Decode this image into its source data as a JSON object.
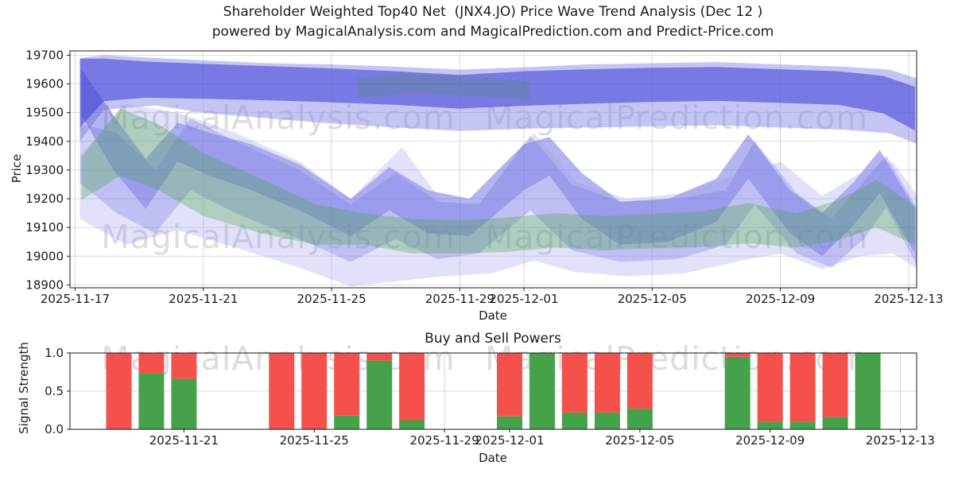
{
  "title": {
    "line1": "Shareholder Weighted Top40 Net  (JNX4.JO) Price Wave Trend Analysis (Dec 12 )",
    "line2": "powered by MagicalAnalysis.com and MagicalPrediction.com and Predict-Price.com"
  },
  "watermarks": {
    "left": "MagicalAnalysis.com",
    "right": "MagicalPrediction.com"
  },
  "colors": {
    "bar_red": "#f4514d",
    "bar_green": "#46a14b",
    "grid": "#d9d9d9",
    "spine": "#1a1a1a",
    "tick_text": "#1a1a1a"
  },
  "chart_data": [
    {
      "type": "area",
      "name": "price-wave-trend",
      "xlabel": "Date",
      "ylabel": "Price",
      "x_epoch": "2025-11-17",
      "xlim_days": [
        -0.16,
        26.25
      ],
      "ylim": [
        18890,
        19715
      ],
      "grid": true,
      "xticks": [
        {
          "d": 0,
          "label": "2025-11-17"
        },
        {
          "d": 4,
          "label": "2025-11-21"
        },
        {
          "d": 8,
          "label": "2025-11-25"
        },
        {
          "d": 12,
          "label": "2025-11-29"
        },
        {
          "d": 14,
          "label": "2025-12-01"
        },
        {
          "d": 18,
          "label": "2025-12-05"
        },
        {
          "d": 22,
          "label": "2025-12-09"
        },
        {
          "d": 26,
          "label": "2025-12-13"
        }
      ],
      "yticks": [
        {
          "v": 18900,
          "label": "18900"
        },
        {
          "v": 19000,
          "label": "19000"
        },
        {
          "v": 19100,
          "label": "19100"
        },
        {
          "v": 19200,
          "label": "19200"
        },
        {
          "v": 19300,
          "label": "19300"
        },
        {
          "v": 19400,
          "label": "19400"
        },
        {
          "v": 19500,
          "label": "19500"
        },
        {
          "v": 19600,
          "label": "19600"
        },
        {
          "v": 19700,
          "label": "19700"
        }
      ],
      "bands": [
        {
          "name": "outer-light-upper",
          "color": "#8c8cea",
          "opacity": 0.5,
          "points": [
            [
              0.15,
              19400,
              19690
            ],
            [
              0.9,
              19510,
              19700
            ],
            [
              2.5,
              19525,
              19690
            ],
            [
              4,
              19500,
              19682
            ],
            [
              6,
              19480,
              19672
            ],
            [
              8,
              19462,
              19668
            ],
            [
              10,
              19448,
              19660
            ],
            [
              12,
              19436,
              19650
            ],
            [
              14,
              19444,
              19658
            ],
            [
              16,
              19448,
              19668
            ],
            [
              18,
              19452,
              19672
            ],
            [
              20,
              19456,
              19676
            ],
            [
              22,
              19448,
              19668
            ],
            [
              24,
              19440,
              19660
            ],
            [
              25.4,
              19428,
              19650
            ],
            [
              26.3,
              19390,
              19618
            ]
          ]
        },
        {
          "name": "upper-dark",
          "color": "#2e2ed2",
          "opacity": 0.5,
          "points": [
            [
              0.15,
              19448,
              19688
            ],
            [
              0.9,
              19540,
              19688
            ],
            [
              2.2,
              19552,
              19678
            ],
            [
              4,
              19548,
              19670
            ],
            [
              6,
              19543,
              19662
            ],
            [
              8,
              19536,
              19654
            ],
            [
              10,
              19527,
              19644
            ],
            [
              12,
              19514,
              19631
            ],
            [
              14,
              19524,
              19644
            ],
            [
              16,
              19531,
              19651
            ],
            [
              18,
              19537,
              19656
            ],
            [
              20,
              19541,
              19659
            ],
            [
              22,
              19534,
              19651
            ],
            [
              23.8,
              19527,
              19644
            ],
            [
              25.2,
              19498,
              19628
            ],
            [
              26.2,
              19438,
              19590
            ]
          ]
        },
        {
          "name": "mid-main",
          "color": "#4343d8",
          "opacity": 0.4,
          "points": [
            [
              0.2,
              19490,
              19650
            ],
            [
              1.2,
              19300,
              19490
            ],
            [
              2.2,
              19165,
              19340
            ],
            [
              3.2,
              19330,
              19465
            ],
            [
              4.2,
              19280,
              19430
            ],
            [
              5.5,
              19230,
              19390
            ],
            [
              7,
              19160,
              19320
            ],
            [
              8.6,
              19070,
              19200
            ],
            [
              9.8,
              19160,
              19310
            ],
            [
              11,
              19080,
              19230
            ],
            [
              12.3,
              19070,
              19200
            ],
            [
              14,
              19230,
              19390
            ],
            [
              14.8,
              19280,
              19415
            ],
            [
              15.8,
              19130,
              19290
            ],
            [
              17,
              19040,
              19190
            ],
            [
              18.5,
              19050,
              19200
            ],
            [
              20,
              19120,
              19270
            ],
            [
              21,
              19270,
              19425
            ],
            [
              22.3,
              19080,
              19230
            ],
            [
              23.3,
              19000,
              19150
            ],
            [
              24.3,
              19110,
              19260
            ],
            [
              25.1,
              19220,
              19370
            ],
            [
              26.2,
              19010,
              19165
            ]
          ]
        },
        {
          "name": "mid-secondary",
          "color": "#6a6ae2",
          "opacity": 0.32,
          "points": [
            [
              0.15,
              19255,
              19460
            ],
            [
              1.3,
              19150,
              19430
            ],
            [
              2.5,
              19080,
              19300
            ],
            [
              3.6,
              19230,
              19480
            ],
            [
              5,
              19150,
              19400
            ],
            [
              7,
              19060,
              19300
            ],
            [
              8.6,
              18980,
              19180
            ],
            [
              10,
              19060,
              19290
            ],
            [
              11.3,
              18990,
              19190
            ],
            [
              12.6,
              19010,
              19180
            ],
            [
              14.2,
              19160,
              19420
            ],
            [
              15.5,
              19020,
              19250
            ],
            [
              17,
              18980,
              19190
            ],
            [
              18.8,
              18990,
              19200
            ],
            [
              20.3,
              19040,
              19230
            ],
            [
              21.2,
              19180,
              19400
            ],
            [
              22.5,
              19010,
              19220
            ],
            [
              23.6,
              18960,
              19130
            ],
            [
              24.6,
              19060,
              19260
            ],
            [
              25.3,
              19170,
              19350
            ],
            [
              26.3,
              18960,
              19160
            ]
          ]
        },
        {
          "name": "outer-light-lower",
          "color": "#9b9bf0",
          "opacity": 0.3,
          "points": [
            [
              0.15,
              19130,
              19350
            ],
            [
              1.6,
              19040,
              19530
            ],
            [
              3.2,
              19090,
              19500
            ],
            [
              5,
              19030,
              19430
            ],
            [
              7,
              18960,
              19330
            ],
            [
              8.6,
              18895,
              19200
            ],
            [
              10.2,
              18915,
              19380
            ],
            [
              11.5,
              18930,
              19180
            ],
            [
              13,
              18940,
              19190
            ],
            [
              14.3,
              18985,
              19430
            ],
            [
              15.6,
              18945,
              19260
            ],
            [
              17.2,
              18930,
              19200
            ],
            [
              19,
              18940,
              19220
            ],
            [
              20.8,
              18985,
              19290
            ],
            [
              22,
              19010,
              19330
            ],
            [
              23.3,
              18955,
              19210
            ],
            [
              24.5,
              19000,
              19290
            ],
            [
              25.5,
              19010,
              19330
            ],
            [
              26.35,
              18950,
              19200
            ]
          ]
        },
        {
          "name": "green-wave",
          "color": "#3da23d",
          "opacity": 0.3,
          "points": [
            [
              0.2,
              19195,
              19345
            ],
            [
              1.4,
              19280,
              19515
            ],
            [
              2.6,
              19230,
              19460
            ],
            [
              4,
              19140,
              19360
            ],
            [
              5.8,
              19080,
              19270
            ],
            [
              7.5,
              19040,
              19180
            ],
            [
              9,
              19040,
              19150
            ],
            [
              10.5,
              19010,
              19130
            ],
            [
              12,
              19010,
              19125
            ],
            [
              13.5,
              19015,
              19135
            ],
            [
              15,
              19030,
              19150
            ],
            [
              16.5,
              19020,
              19140
            ],
            [
              18,
              19028,
              19148
            ],
            [
              19.5,
              19032,
              19155
            ],
            [
              21,
              19045,
              19185
            ],
            [
              22.5,
              19030,
              19150
            ],
            [
              23.8,
              19055,
              19195
            ],
            [
              25,
              19100,
              19265
            ],
            [
              26.2,
              19040,
              19175
            ]
          ]
        },
        {
          "name": "green-sliver-upper",
          "color": "#3da23d",
          "opacity": 0.2,
          "points": [
            [
              8.8,
              19552,
              19622
            ],
            [
              10.5,
              19568,
              19634
            ],
            [
              12.5,
              19558,
              19624
            ],
            [
              14.2,
              19544,
              19608
            ]
          ]
        }
      ]
    },
    {
      "type": "bar",
      "name": "buy-sell-powers",
      "stacked": true,
      "title": "Buy and Sell Powers",
      "xlabel": "Date",
      "ylabel": "Signal Strength",
      "x_epoch": "2025-11-17",
      "xlim_days": [
        0.5,
        26.5
      ],
      "ylim": [
        0,
        1
      ],
      "grid": true,
      "bar_width_days": 0.78,
      "series": [
        {
          "name": "Sell",
          "color": "#f4514d"
        },
        {
          "name": "Buy",
          "color": "#46a14b"
        }
      ],
      "xticks": [
        {
          "d": 4,
          "label": "2025-11-21"
        },
        {
          "d": 8,
          "label": "2025-11-25"
        },
        {
          "d": 12,
          "label": "2025-11-29"
        },
        {
          "d": 14,
          "label": "2025-12-01"
        },
        {
          "d": 18,
          "label": "2025-12-05"
        },
        {
          "d": 22,
          "label": "2025-12-09"
        },
        {
          "d": 26,
          "label": "2025-12-13"
        }
      ],
      "yticks": [
        {
          "v": 0,
          "label": "0.0"
        },
        {
          "v": 0.5,
          "label": "0.5"
        },
        {
          "v": 1,
          "label": "1.0"
        }
      ],
      "bars": [
        {
          "date": "2025-11-19",
          "d": 2,
          "buy": 0.0,
          "sell": 1.0
        },
        {
          "date": "2025-11-20",
          "d": 3,
          "buy": 0.73,
          "sell": 0.27
        },
        {
          "date": "2025-11-21",
          "d": 4,
          "buy": 0.66,
          "sell": 0.34
        },
        {
          "date": "2025-11-24",
          "d": 7,
          "buy": 0.0,
          "sell": 1.0
        },
        {
          "date": "2025-11-25",
          "d": 8,
          "buy": 0.0,
          "sell": 1.0
        },
        {
          "date": "2025-11-26",
          "d": 9,
          "buy": 0.18,
          "sell": 0.82
        },
        {
          "date": "2025-11-27",
          "d": 10,
          "buy": 0.9,
          "sell": 0.1
        },
        {
          "date": "2025-11-28",
          "d": 11,
          "buy": 0.12,
          "sell": 0.88
        },
        {
          "date": "2025-12-01",
          "d": 14,
          "buy": 0.17,
          "sell": 0.83
        },
        {
          "date": "2025-12-02",
          "d": 15,
          "buy": 1.0,
          "sell": 0.0
        },
        {
          "date": "2025-12-03",
          "d": 16,
          "buy": 0.22,
          "sell": 0.78
        },
        {
          "date": "2025-12-04",
          "d": 17,
          "buy": 0.22,
          "sell": 0.78
        },
        {
          "date": "2025-12-05",
          "d": 18,
          "buy": 0.27,
          "sell": 0.73
        },
        {
          "date": "2025-12-08",
          "d": 21,
          "buy": 0.95,
          "sell": 0.05
        },
        {
          "date": "2025-12-09",
          "d": 22,
          "buy": 0.1,
          "sell": 0.9
        },
        {
          "date": "2025-12-10",
          "d": 23,
          "buy": 0.1,
          "sell": 0.9
        },
        {
          "date": "2025-12-11",
          "d": 24,
          "buy": 0.16,
          "sell": 0.84
        },
        {
          "date": "2025-12-12",
          "d": 25,
          "buy": 1.0,
          "sell": 0.0
        }
      ]
    }
  ]
}
